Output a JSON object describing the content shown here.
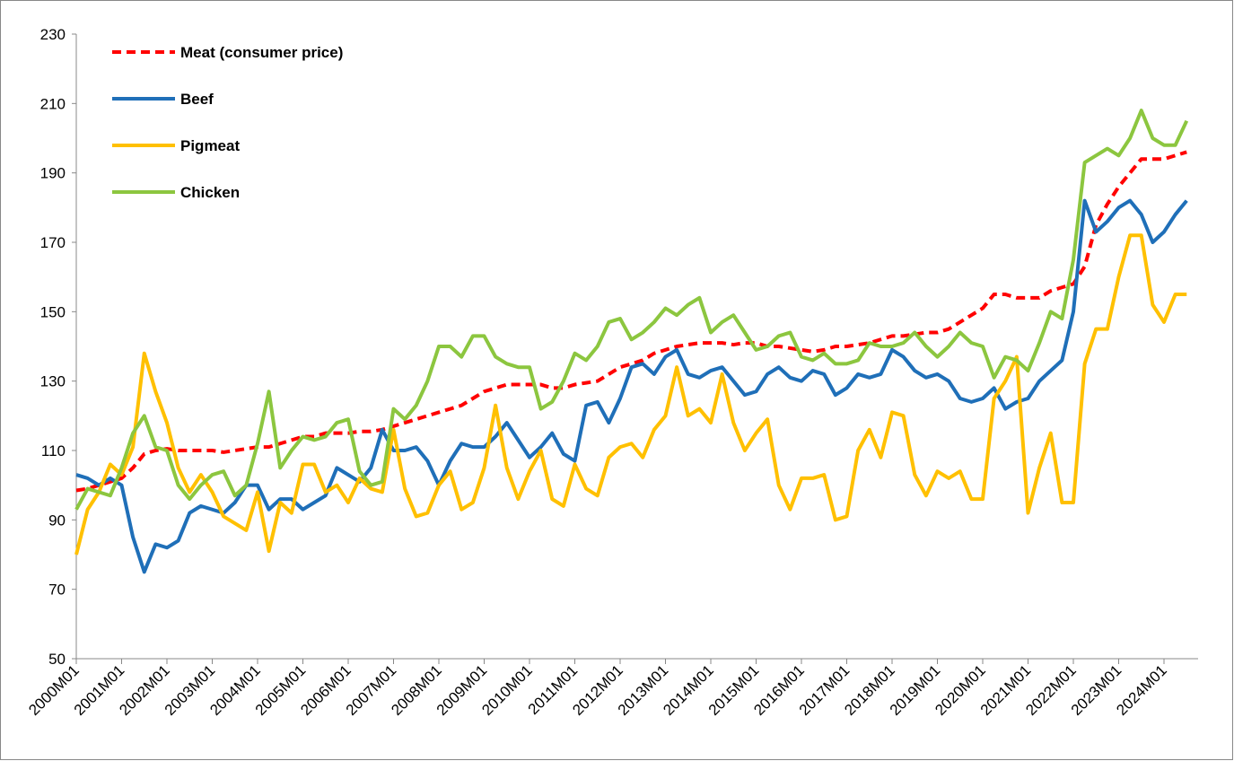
{
  "chart_data": {
    "type": "line",
    "categories": [
      "2000M01",
      null,
      null,
      null,
      "2001M01",
      null,
      null,
      null,
      "2002M01",
      null,
      null,
      null,
      "2003M01",
      null,
      null,
      null,
      "2004M01",
      null,
      null,
      null,
      "2005M01",
      null,
      null,
      null,
      "2006M01",
      null,
      null,
      null,
      "2007M01",
      null,
      null,
      null,
      "2008M01",
      null,
      null,
      null,
      "2009M01",
      null,
      null,
      null,
      "2010M01",
      null,
      null,
      null,
      "2011M01",
      null,
      null,
      null,
      "2012M01",
      null,
      null,
      null,
      "2013M01",
      null,
      null,
      null,
      "2014M01",
      null,
      null,
      null,
      "2015M01",
      null,
      null,
      null,
      "2016M01",
      null,
      null,
      null,
      "2017M01",
      null,
      null,
      null,
      "2018M01",
      null,
      null,
      null,
      "2019M01",
      null,
      null,
      null,
      "2020M01",
      null,
      null,
      null,
      "2021M01",
      null,
      null,
      null,
      "2022M01",
      null,
      null,
      null,
      "2023M01",
      null,
      null,
      null,
      "2024M01",
      null,
      null
    ],
    "series": [
      {
        "name": "Meat (consumer price)",
        "color": "#ff0000",
        "style": "dashed",
        "values": [
          98.5,
          99,
          100,
          101,
          102,
          105,
          109,
          110,
          110.5,
          110,
          110,
          110,
          110,
          109.5,
          110,
          110.5,
          111,
          111,
          112,
          113,
          114,
          114,
          115,
          115,
          115,
          115.5,
          115.5,
          116,
          117,
          118,
          119,
          120,
          121,
          122,
          123,
          125,
          127,
          128,
          129,
          129,
          129,
          129,
          128,
          128,
          129,
          129.5,
          130,
          132,
          134,
          135,
          136,
          138,
          139,
          140,
          140.5,
          141,
          141,
          141,
          140.5,
          141,
          141,
          140,
          140,
          139.5,
          139,
          138.5,
          139,
          140,
          140,
          140.5,
          141,
          142,
          143,
          143,
          143.5,
          144,
          144,
          145,
          147,
          149,
          151,
          155,
          155,
          154,
          154,
          154,
          156,
          157,
          158,
          163,
          175,
          181,
          186,
          190,
          194,
          194,
          194,
          195,
          196
        ]
      },
      {
        "name": "Beef",
        "color": "#1f6fb8",
        "style": "solid",
        "values": [
          103,
          102,
          100,
          102,
          100,
          85,
          75,
          83,
          82,
          84,
          92,
          94,
          93,
          92,
          95,
          100,
          100,
          93,
          96,
          96,
          93,
          95,
          97,
          105,
          103,
          101,
          105,
          116,
          110,
          110,
          111,
          107,
          100,
          107,
          112,
          111,
          111,
          114,
          118,
          113,
          108,
          111,
          115,
          109,
          107,
          123,
          124,
          118,
          125,
          134,
          135,
          132,
          137,
          139,
          132,
          131,
          133,
          134,
          130,
          126,
          127,
          132,
          134,
          131,
          130,
          133,
          132,
          126,
          128,
          132,
          131,
          132,
          139,
          137,
          133,
          131,
          132,
          130,
          125,
          124,
          125,
          128,
          122,
          124,
          125,
          130,
          133,
          136,
          150,
          182,
          173,
          176,
          180,
          182,
          178,
          170,
          173,
          178,
          182
        ]
      },
      {
        "name": "Pigmeat",
        "color": "#ffc000",
        "style": "solid",
        "values": [
          80,
          93,
          98,
          106,
          103,
          111,
          138,
          127,
          118,
          105,
          98,
          103,
          98,
          91,
          89,
          87,
          98,
          81,
          95,
          92,
          106,
          106,
          98,
          100,
          95,
          102,
          99,
          98,
          116,
          99,
          91,
          92,
          100,
          104,
          93,
          95,
          105,
          123,
          105,
          96,
          104,
          110,
          96,
          94,
          106,
          99,
          97,
          108,
          111,
          112,
          108,
          116,
          120,
          134,
          120,
          122,
          118,
          132,
          118,
          110,
          115,
          119,
          100,
          93,
          102,
          102,
          103,
          90,
          91,
          110,
          116,
          108,
          121,
          120,
          103,
          97,
          104,
          102,
          104,
          96,
          96,
          125,
          130,
          137,
          92,
          105,
          115,
          95,
          95,
          135,
          145,
          145,
          160,
          172,
          172,
          152,
          147,
          155,
          155
        ]
      },
      {
        "name": "Chicken",
        "color": "#8cc63f",
        "style": "solid",
        "values": [
          93,
          99,
          98,
          97,
          105,
          115,
          120,
          111,
          110,
          100,
          96,
          100,
          103,
          104,
          97,
          100,
          112,
          127,
          105,
          110,
          114,
          113,
          114,
          118,
          119,
          104,
          100,
          101,
          122,
          119,
          123,
          130,
          140,
          140,
          137,
          143,
          143,
          137,
          135,
          134,
          134,
          122,
          124,
          130,
          138,
          136,
          140,
          147,
          148,
          142,
          144,
          147,
          151,
          149,
          152,
          154,
          144,
          147,
          149,
          144,
          139,
          140,
          143,
          144,
          137,
          136,
          138,
          135,
          135,
          136,
          141,
          140,
          140,
          141,
          144,
          140,
          137,
          140,
          144,
          141,
          140,
          131,
          137,
          136,
          133,
          141,
          150,
          148,
          165,
          193,
          195,
          197,
          195,
          200,
          208,
          200,
          198,
          198,
          205
        ]
      }
    ],
    "ylim": [
      50,
      230
    ],
    "yticks": [
      50,
      70,
      90,
      110,
      130,
      150,
      170,
      190,
      210,
      230
    ],
    "grid": false,
    "legend": "upper left"
  }
}
